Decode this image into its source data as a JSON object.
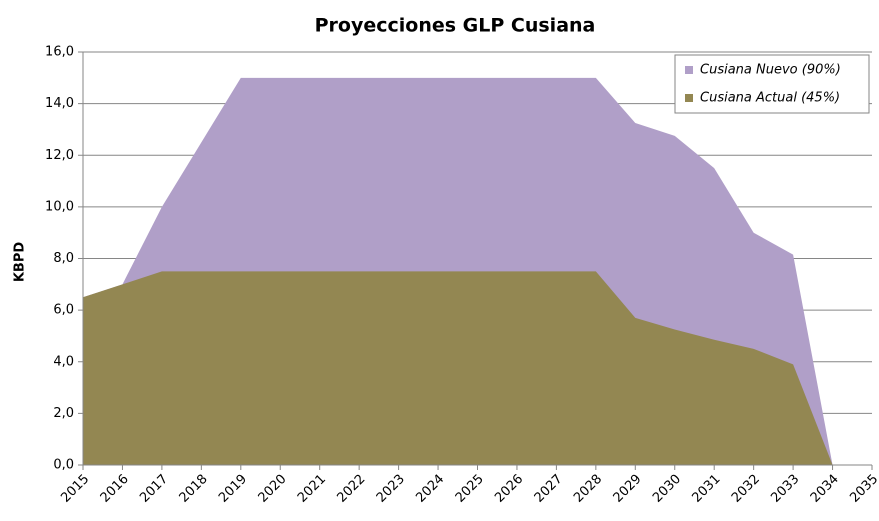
{
  "chart_data": {
    "type": "area",
    "title": "Proyecciones GLP Cusiana",
    "y_label": "KBPD",
    "x": [
      2015,
      2016,
      2017,
      2018,
      2019,
      2020,
      2021,
      2022,
      2023,
      2024,
      2025,
      2026,
      2027,
      2028,
      2029,
      2030,
      2031,
      2032,
      2033,
      2034,
      2035
    ],
    "xlim": [
      2015,
      2035
    ],
    "xticks": [
      2015,
      2016,
      2017,
      2018,
      2019,
      2020,
      2021,
      2022,
      2023,
      2024,
      2025,
      2026,
      2027,
      2028,
      2029,
      2030,
      2031,
      2032,
      2033,
      2034,
      2035
    ],
    "ylim": [
      0,
      16
    ],
    "yticks": [
      {
        "value": 0,
        "label": "0,0"
      },
      {
        "value": 2,
        "label": "2,0"
      },
      {
        "value": 4,
        "label": "4,0"
      },
      {
        "value": 6,
        "label": "6,0"
      },
      {
        "value": 8,
        "label": "8,0"
      },
      {
        "value": 10,
        "label": "10,0"
      },
      {
        "value": 12,
        "label": "12,0"
      },
      {
        "value": 14,
        "label": "14,0"
      },
      {
        "value": 16,
        "label": "16,0"
      }
    ],
    "grid": true,
    "legend": "top-right",
    "series": [
      {
        "name": "Cusiana Nuevo (90%)",
        "color": "#b09fc8",
        "values": [
          6.5,
          7.0,
          10.0,
          12.5,
          15.0,
          15.0,
          15.0,
          15.0,
          15.0,
          15.0,
          15.0,
          15.0,
          15.0,
          15.0,
          13.25,
          12.75,
          11.5,
          9.0,
          8.15,
          0,
          null
        ]
      },
      {
        "name": "Cusiana Actual (45%)",
        "color": "#938752",
        "values": [
          6.5,
          7.0,
          7.5,
          7.5,
          7.5,
          7.5,
          7.5,
          7.5,
          7.5,
          7.5,
          7.5,
          7.5,
          7.5,
          7.5,
          5.7,
          5.25,
          4.85,
          4.5,
          3.9,
          0,
          null
        ]
      }
    ]
  }
}
